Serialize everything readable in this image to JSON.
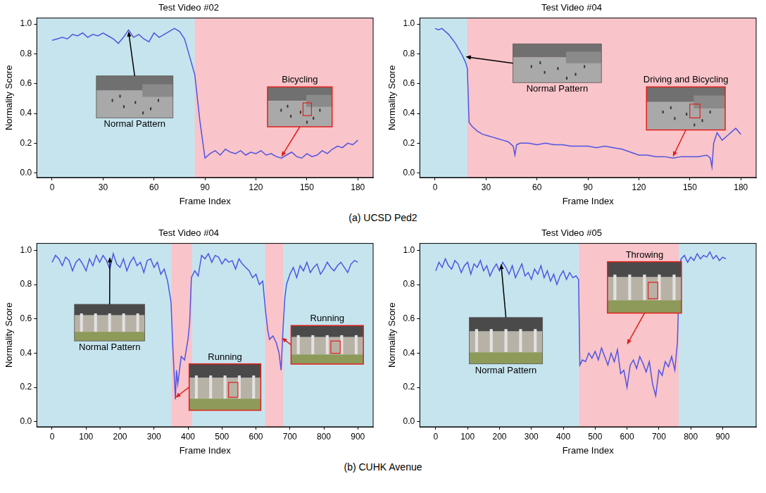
{
  "chart_data": [
    {
      "type": "line",
      "title": "Test Video #02",
      "x_label": "Frame Index",
      "y_label": "Normality Score",
      "xlim": [
        -9,
        189
      ],
      "xticks": [
        0,
        30,
        60,
        90,
        120,
        150,
        180
      ],
      "ylim": [
        -0.03,
        1.04
      ],
      "yticks": [
        {
          "value": 0,
          "label": "0.0"
        },
        {
          "value": 0.2,
          "label": "0.2"
        },
        {
          "value": 0.4,
          "label": "0.4"
        },
        {
          "value": 0.6,
          "label": "0.6"
        },
        {
          "value": 0.8,
          "label": "0.8"
        },
        {
          "value": 1,
          "label": "1.0"
        }
      ],
      "grid": false,
      "color": "#4f55e0",
      "x": [
        0,
        3,
        6,
        9,
        12,
        15,
        18,
        21,
        24,
        27,
        30,
        33,
        36,
        39,
        42,
        45,
        48,
        51,
        54,
        57,
        60,
        63,
        66,
        69,
        72,
        75,
        78,
        81,
        84,
        87,
        90,
        93,
        96,
        99,
        102,
        105,
        108,
        111,
        114,
        117,
        120,
        123,
        126,
        129,
        132,
        135,
        138,
        141,
        144,
        147,
        150,
        153,
        156,
        159,
        162,
        165,
        168,
        171,
        174,
        177,
        180
      ],
      "values": [
        0.89,
        0.9,
        0.91,
        0.9,
        0.93,
        0.92,
        0.94,
        0.91,
        0.93,
        0.92,
        0.94,
        0.92,
        0.9,
        0.87,
        0.91,
        0.96,
        0.91,
        0.93,
        0.9,
        0.88,
        0.94,
        0.91,
        0.93,
        0.95,
        0.97,
        0.95,
        0.9,
        0.78,
        0.66,
        0.35,
        0.1,
        0.13,
        0.15,
        0.12,
        0.16,
        0.14,
        0.13,
        0.15,
        0.12,
        0.14,
        0.13,
        0.15,
        0.12,
        0.13,
        0.11,
        0.1,
        0.12,
        0.14,
        0.11,
        0.1,
        0.13,
        0.11,
        0.12,
        0.15,
        0.13,
        0.16,
        0.18,
        0.17,
        0.2,
        0.19,
        0.22
      ],
      "anomaly_ranges": [
        [
          84,
          189
        ]
      ],
      "annotations": [
        {
          "text": "Normal Pattern",
          "x": 45,
          "y": 0.95
        },
        {
          "text": "Bicycling",
          "x": 135,
          "y": 0.11
        }
      ]
    },
    {
      "type": "line",
      "title": "Test Video #04",
      "x_label": "Frame Index",
      "y_label": "Normality Score",
      "xlim": [
        -9,
        189
      ],
      "xticks": [
        0,
        30,
        60,
        90,
        120,
        150,
        180
      ],
      "ylim": [
        -0.03,
        1.04
      ],
      "yticks": [
        {
          "value": 0,
          "label": "0.0"
        },
        {
          "value": 0.2,
          "label": "0.2"
        },
        {
          "value": 0.4,
          "label": "0.4"
        },
        {
          "value": 0.6,
          "label": "0.6"
        },
        {
          "value": 0.8,
          "label": "0.8"
        },
        {
          "value": 1,
          "label": "1.0"
        }
      ],
      "grid": false,
      "color": "#4f55e0",
      "x": [
        0,
        2,
        4,
        6,
        8,
        10,
        12,
        14,
        16,
        18,
        19,
        20,
        22,
        25,
        28,
        31,
        34,
        37,
        40,
        43,
        46,
        47,
        48,
        50,
        55,
        60,
        65,
        70,
        75,
        80,
        85,
        90,
        95,
        100,
        105,
        110,
        115,
        120,
        125,
        130,
        135,
        140,
        145,
        150,
        155,
        160,
        162,
        163,
        164,
        166,
        169,
        172,
        175,
        177,
        180
      ],
      "values": [
        0.97,
        0.96,
        0.97,
        0.95,
        0.93,
        0.9,
        0.87,
        0.83,
        0.79,
        0.74,
        0.7,
        0.34,
        0.31,
        0.28,
        0.26,
        0.25,
        0.24,
        0.23,
        0.22,
        0.21,
        0.18,
        0.12,
        0.19,
        0.2,
        0.2,
        0.19,
        0.2,
        0.19,
        0.19,
        0.18,
        0.18,
        0.18,
        0.17,
        0.18,
        0.17,
        0.16,
        0.14,
        0.12,
        0.12,
        0.11,
        0.11,
        0.1,
        0.11,
        0.11,
        0.11,
        0.12,
        0.1,
        0.04,
        0.2,
        0.27,
        0.22,
        0.25,
        0.28,
        0.3,
        0.26
      ],
      "anomaly_ranges": [
        [
          19,
          189
        ]
      ],
      "annotations": [
        {
          "text": "Normal Pattern",
          "x": 18,
          "y": 0.78
        },
        {
          "text": "Driving and Bicycling",
          "x": 140,
          "y": 0.11
        }
      ]
    },
    {
      "type": "line",
      "title": "Test Video #04",
      "x_label": "Frame Index",
      "y_label": "Normality Score",
      "xlim": [
        -45,
        945
      ],
      "xticks": [
        0,
        100,
        200,
        300,
        400,
        500,
        600,
        700,
        800,
        900
      ],
      "ylim": [
        -0.03,
        1.04
      ],
      "yticks": [
        {
          "value": 0,
          "label": "0.0"
        },
        {
          "value": 0.2,
          "label": "0.2"
        },
        {
          "value": 0.4,
          "label": "0.4"
        },
        {
          "value": 0.6,
          "label": "0.6"
        },
        {
          "value": 0.8,
          "label": "0.8"
        },
        {
          "value": 1,
          "label": "1.0"
        }
      ],
      "grid": false,
      "color": "#4f55e0",
      "x": [
        0,
        10,
        20,
        30,
        40,
        50,
        60,
        70,
        80,
        90,
        100,
        110,
        120,
        130,
        140,
        150,
        160,
        170,
        180,
        190,
        200,
        210,
        220,
        230,
        240,
        250,
        260,
        270,
        280,
        290,
        300,
        310,
        320,
        330,
        340,
        350,
        355,
        360,
        363,
        366,
        370,
        380,
        390,
        400,
        405,
        410,
        420,
        430,
        440,
        450,
        460,
        470,
        480,
        490,
        500,
        510,
        520,
        530,
        540,
        550,
        560,
        570,
        580,
        590,
        600,
        610,
        620,
        628,
        635,
        640,
        650,
        660,
        668,
        674,
        680,
        685,
        690,
        700,
        710,
        720,
        730,
        740,
        750,
        760,
        770,
        780,
        790,
        800,
        810,
        820,
        830,
        840,
        850,
        860,
        870,
        880,
        890,
        900
      ],
      "values": [
        0.93,
        0.97,
        0.95,
        0.91,
        0.96,
        0.94,
        0.88,
        0.93,
        0.95,
        0.92,
        0.88,
        0.95,
        0.91,
        0.97,
        0.93,
        0.97,
        0.94,
        0.89,
        0.98,
        0.92,
        0.9,
        0.95,
        0.88,
        0.93,
        0.96,
        0.91,
        0.93,
        0.87,
        0.94,
        0.95,
        0.9,
        0.93,
        0.86,
        0.89,
        0.82,
        0.7,
        0.45,
        0.25,
        0.13,
        0.3,
        0.22,
        0.38,
        0.36,
        0.48,
        0.58,
        0.84,
        0.88,
        0.85,
        0.97,
        0.95,
        0.98,
        0.93,
        0.97,
        0.96,
        0.92,
        0.95,
        0.93,
        0.94,
        0.89,
        0.95,
        0.92,
        0.9,
        0.88,
        0.84,
        0.86,
        0.8,
        0.82,
        0.65,
        0.53,
        0.48,
        0.5,
        0.46,
        0.4,
        0.3,
        0.55,
        0.72,
        0.8,
        0.86,
        0.9,
        0.84,
        0.91,
        0.88,
        0.93,
        0.87,
        0.9,
        0.92,
        0.86,
        0.89,
        0.93,
        0.9,
        0.88,
        0.91,
        0.93,
        0.9,
        0.87,
        0.92,
        0.94,
        0.93
      ],
      "anomaly_ranges": [
        [
          352,
          412
        ],
        [
          627,
          680
        ]
      ],
      "annotations": [
        {
          "text": "Normal Pattern",
          "x": 170,
          "y": 0.96
        },
        {
          "text": "Running",
          "x": 363,
          "y": 0.14
        },
        {
          "text": "Running",
          "x": 676,
          "y": 0.49
        }
      ]
    },
    {
      "type": "line",
      "title": "Test Video #05",
      "x_label": "Frame Index",
      "y_label": "Normality Score",
      "xlim": [
        -50,
        1005
      ],
      "xticks": [
        0,
        100,
        200,
        300,
        400,
        500,
        600,
        700,
        800,
        900
      ],
      "ylim": [
        -0.03,
        1.04
      ],
      "yticks": [
        {
          "value": 0,
          "label": "0.0"
        },
        {
          "value": 0.2,
          "label": "0.2"
        },
        {
          "value": 0.4,
          "label": "0.4"
        },
        {
          "value": 0.6,
          "label": "0.6"
        },
        {
          "value": 0.8,
          "label": "0.8"
        },
        {
          "value": 1,
          "label": "1.0"
        }
      ],
      "grid": false,
      "color": "#4f55e0",
      "x": [
        0,
        10,
        20,
        30,
        40,
        50,
        60,
        70,
        80,
        90,
        100,
        110,
        120,
        130,
        140,
        150,
        160,
        170,
        180,
        190,
        200,
        210,
        220,
        230,
        240,
        250,
        260,
        270,
        280,
        290,
        300,
        310,
        320,
        330,
        340,
        350,
        360,
        370,
        380,
        390,
        400,
        410,
        420,
        430,
        440,
        448,
        452,
        460,
        470,
        480,
        490,
        500,
        510,
        520,
        530,
        540,
        550,
        560,
        570,
        580,
        590,
        600,
        610,
        620,
        630,
        640,
        650,
        660,
        670,
        680,
        690,
        700,
        710,
        720,
        730,
        740,
        750,
        758,
        765,
        770,
        780,
        790,
        800,
        810,
        820,
        830,
        840,
        850,
        860,
        870,
        880,
        890,
        900,
        910
      ],
      "values": [
        0.88,
        0.93,
        0.9,
        0.95,
        0.91,
        0.89,
        0.94,
        0.92,
        0.87,
        0.91,
        0.93,
        0.86,
        0.92,
        0.9,
        0.94,
        0.88,
        0.91,
        0.85,
        0.89,
        0.92,
        0.88,
        0.93,
        0.9,
        0.86,
        0.91,
        0.84,
        0.88,
        0.92,
        0.85,
        0.87,
        0.83,
        0.89,
        0.86,
        0.91,
        0.84,
        0.88,
        0.82,
        0.86,
        0.8,
        0.85,
        0.88,
        0.83,
        0.87,
        0.84,
        0.85,
        0.83,
        0.33,
        0.36,
        0.35,
        0.4,
        0.37,
        0.41,
        0.36,
        0.43,
        0.38,
        0.33,
        0.4,
        0.35,
        0.42,
        0.28,
        0.3,
        0.2,
        0.33,
        0.36,
        0.31,
        0.38,
        0.34,
        0.29,
        0.35,
        0.22,
        0.15,
        0.3,
        0.27,
        0.35,
        0.32,
        0.38,
        0.3,
        0.46,
        0.92,
        0.95,
        0.97,
        0.93,
        0.96,
        0.94,
        0.98,
        0.95,
        0.97,
        0.96,
        0.99,
        0.95,
        0.97,
        0.94,
        0.96,
        0.95
      ],
      "anomaly_ranges": [
        [
          450,
          762
        ]
      ],
      "annotations": [
        {
          "text": "Normal Pattern",
          "x": 205,
          "y": 0.92
        },
        {
          "text": "Throwing",
          "x": 600,
          "y": 0.45
        }
      ]
    }
  ],
  "captions": [
    "(a) UCSD Ped2",
    "(b) CUHK Avenue"
  ]
}
